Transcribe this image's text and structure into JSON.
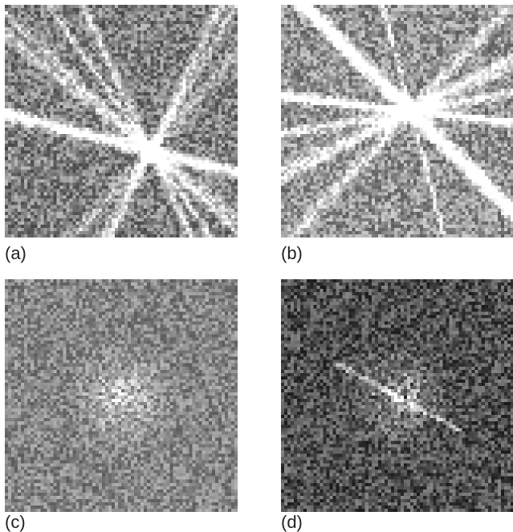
{
  "figure": {
    "panels": [
      {
        "id": "a",
        "label": "(a)",
        "kind": "kikuchi-pattern",
        "background": "#3a3a3a"
      },
      {
        "id": "b",
        "label": "(b)",
        "kind": "kikuchi-pattern",
        "background": "#4a4a4a"
      },
      {
        "id": "c",
        "label": "(c)",
        "kind": "fft-spectrum",
        "background": "#666666"
      },
      {
        "id": "d",
        "label": "(d)",
        "kind": "fft-spectrum",
        "background": "#1a1a1a"
      }
    ]
  }
}
